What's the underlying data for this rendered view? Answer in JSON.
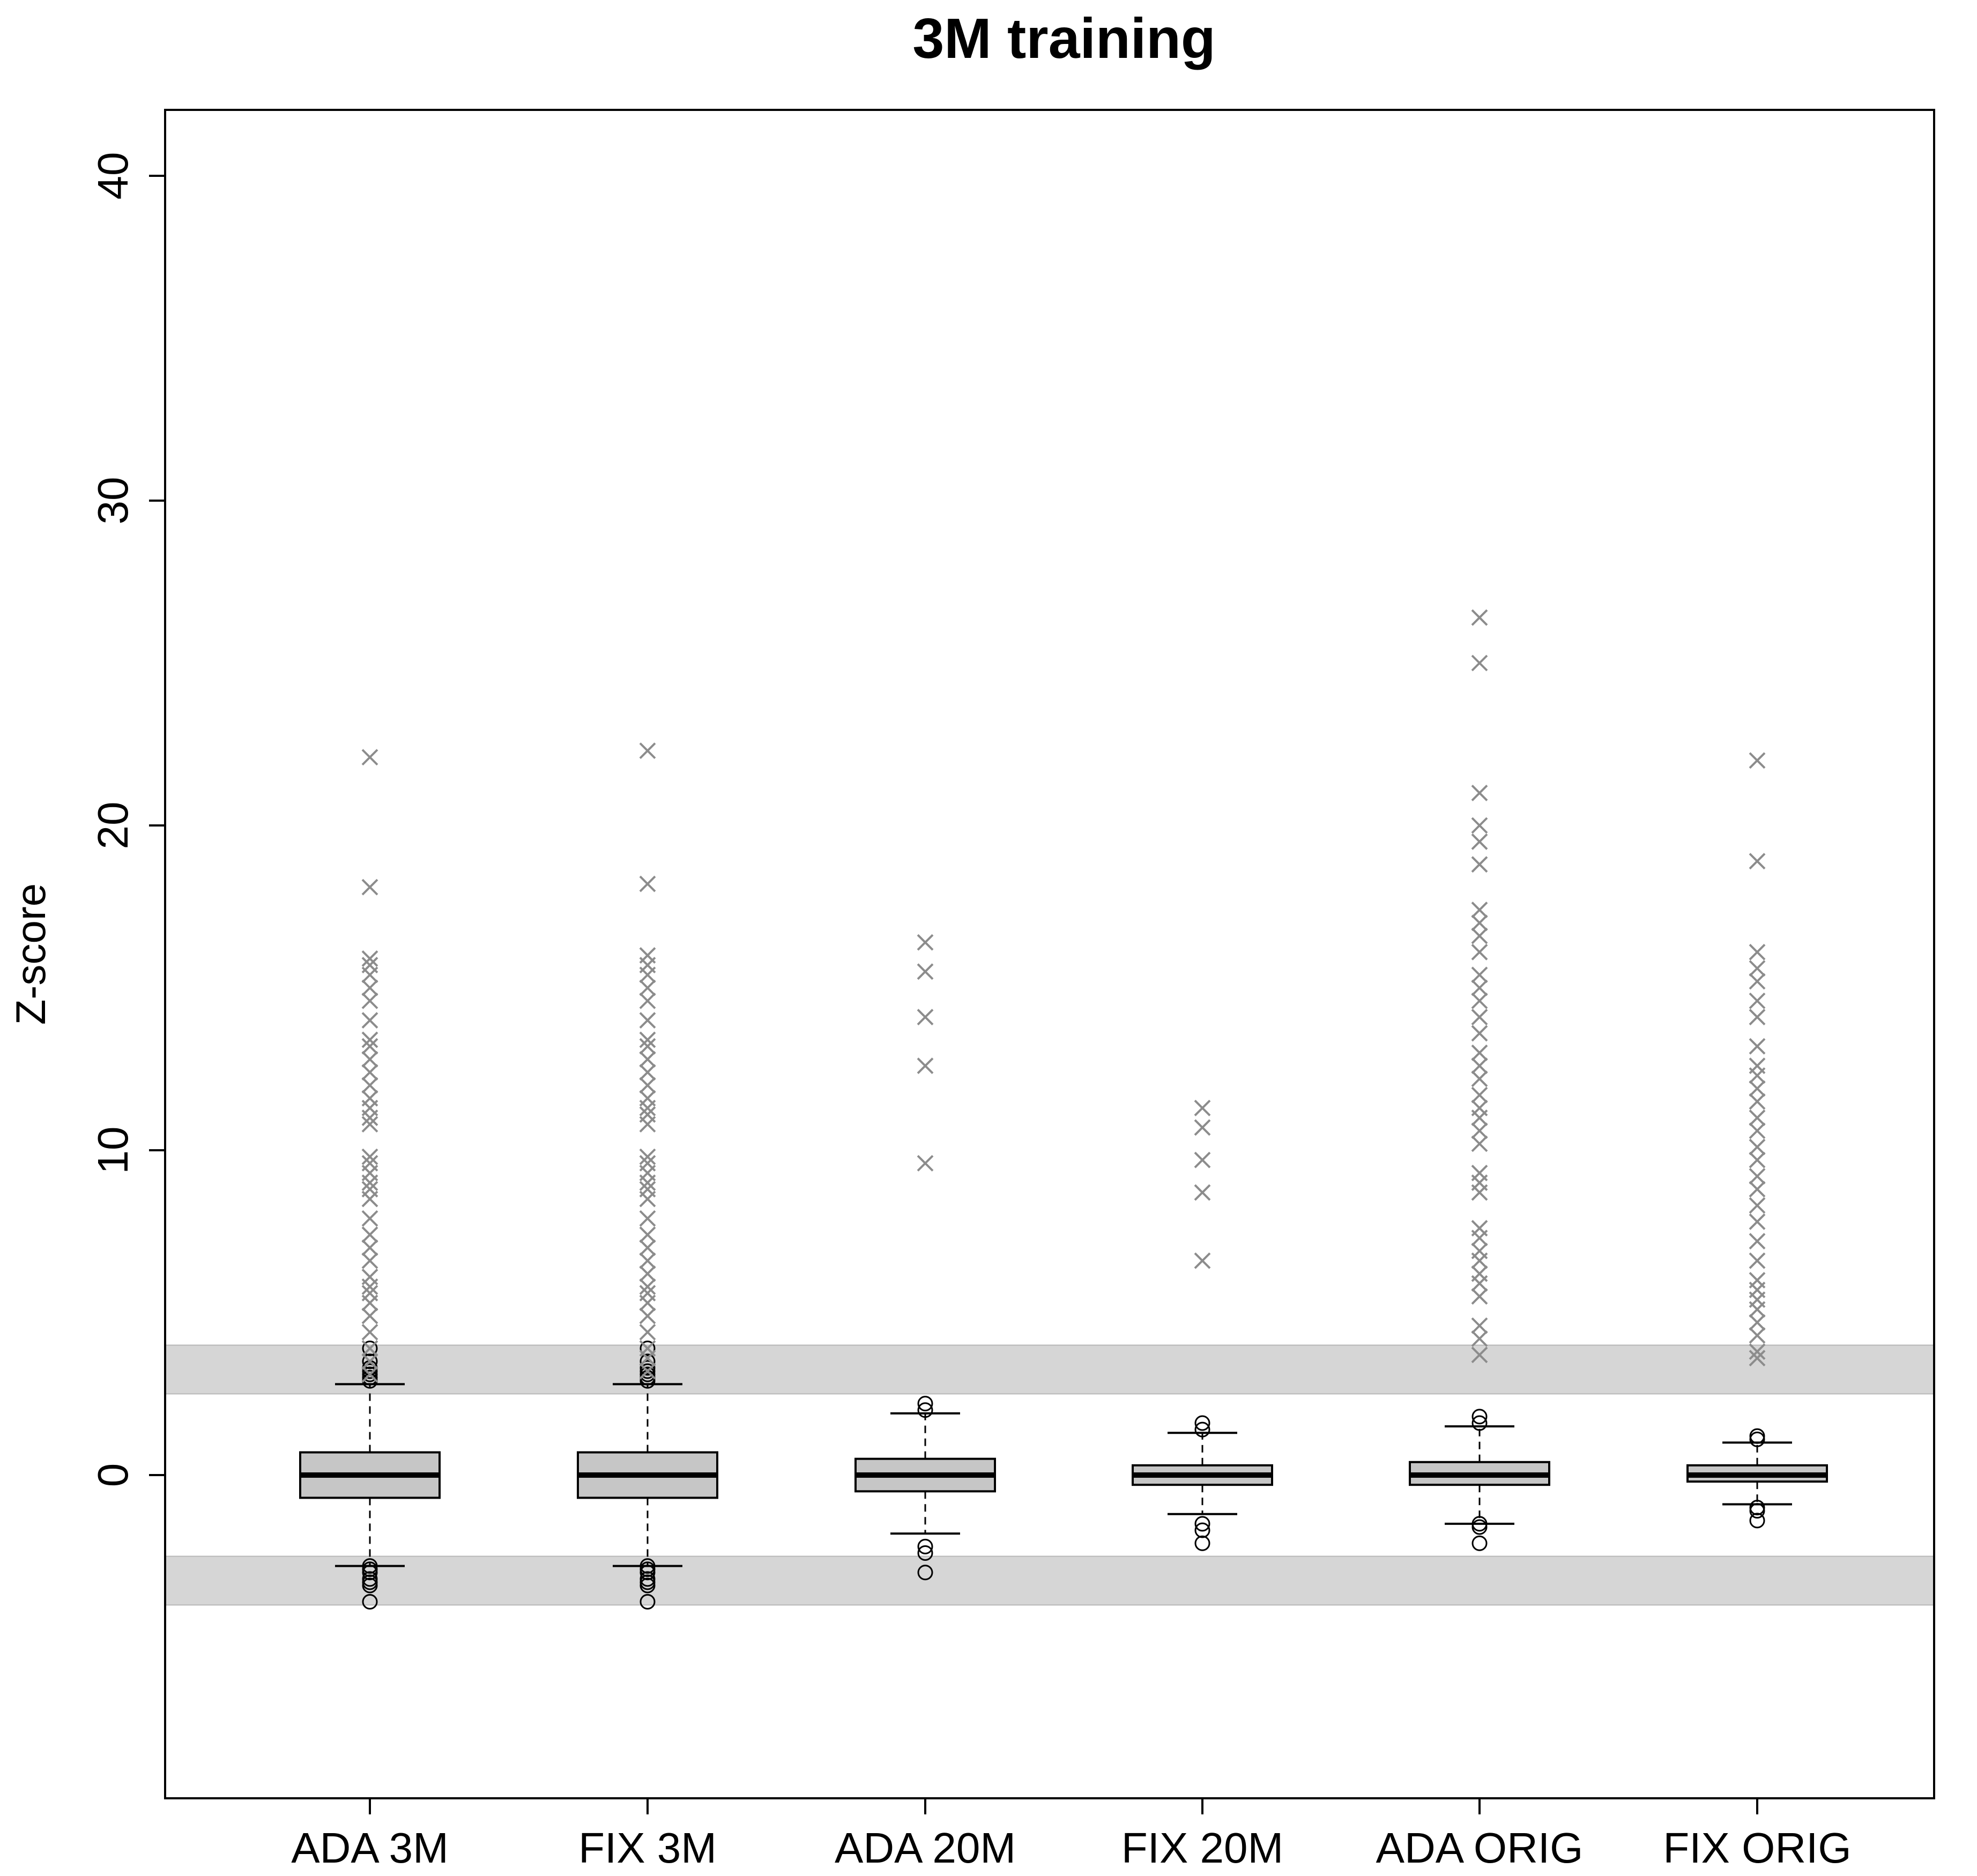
{
  "chart_data": {
    "type": "boxplot",
    "title": "3M training",
    "xlabel": "",
    "ylabel": "Z-score",
    "ylim": [
      -10,
      42
    ],
    "y_ticks": [
      "0",
      "10",
      "20",
      "30",
      "40"
    ],
    "bands": [
      {
        "from": 2.5,
        "to": 4.0,
        "color": "#d6d6d6"
      },
      {
        "from": -4.0,
        "to": -2.5,
        "color": "#d6d6d6"
      }
    ],
    "categories": [
      "ADA 3M",
      "FIX 3M",
      "ADA 20M",
      "FIX 20M",
      "ADA ORIG",
      "FIX ORIG"
    ],
    "boxes": [
      {
        "q1": -0.7,
        "median": 0.0,
        "q3": 0.7,
        "whisker_low": -2.8,
        "whisker_high": 2.8,
        "outliers": [
          2.9,
          3.0,
          3.1,
          3.2,
          3.3,
          3.5,
          3.9,
          -2.8,
          -2.9,
          -3.0,
          -3.2,
          -3.3,
          -3.4,
          -3.9
        ]
      },
      {
        "q1": -0.7,
        "median": 0.0,
        "q3": 0.7,
        "whisker_low": -2.8,
        "whisker_high": 2.8,
        "outliers": [
          2.9,
          3.0,
          3.1,
          3.2,
          3.3,
          3.5,
          3.9,
          -2.8,
          -2.9,
          -3.0,
          -3.2,
          -3.3,
          -3.4,
          -3.9
        ]
      },
      {
        "q1": -0.5,
        "median": 0.0,
        "q3": 0.5,
        "whisker_low": -1.8,
        "whisker_high": 1.9,
        "outliers": [
          2.0,
          2.2,
          -2.2,
          -2.4,
          -3.0
        ]
      },
      {
        "q1": -0.3,
        "median": 0.0,
        "q3": 0.3,
        "whisker_low": -1.2,
        "whisker_high": 1.3,
        "outliers": [
          1.4,
          1.6,
          -1.5,
          -1.7,
          -2.1
        ]
      },
      {
        "q1": -0.3,
        "median": 0.0,
        "q3": 0.4,
        "whisker_low": -1.5,
        "whisker_high": 1.5,
        "outliers": [
          1.6,
          1.8,
          -1.5,
          -1.6,
          -2.1
        ]
      },
      {
        "q1": -0.2,
        "median": 0.0,
        "q3": 0.3,
        "whisker_low": -0.9,
        "whisker_high": 1.0,
        "outliers": [
          1.1,
          1.2,
          -1.0,
          -1.1,
          -1.4
        ]
      }
    ],
    "extreme_points": [
      [
        3.1,
        3.5,
        3.9,
        4.4,
        4.9,
        5.3,
        5.6,
        5.8,
        6.1,
        6.6,
        7.0,
        7.4,
        7.9,
        8.5,
        8.8,
        9.0,
        9.3,
        9.6,
        9.8,
        10.8,
        11.0,
        11.3,
        11.6,
        12.0,
        12.4,
        12.8,
        13.2,
        13.4,
        14.0,
        14.6,
        15.0,
        15.4,
        15.7,
        15.9,
        18.1,
        22.1
      ],
      [
        3.2,
        3.6,
        3.9,
        4.4,
        4.9,
        5.3,
        5.6,
        5.8,
        6.2,
        6.6,
        7.0,
        7.4,
        7.9,
        8.5,
        8.8,
        9.0,
        9.3,
        9.6,
        9.8,
        10.8,
        11.1,
        11.3,
        11.6,
        12.0,
        12.4,
        12.8,
        13.2,
        13.4,
        14.0,
        14.6,
        15.0,
        15.4,
        15.7,
        16.0,
        18.2,
        22.3
      ],
      [
        9.6,
        12.6,
        14.1,
        15.5,
        16.4
      ],
      [
        6.6,
        8.7,
        9.7,
        10.7,
        11.3
      ],
      [
        3.7,
        4.2,
        4.6,
        5.5,
        5.9,
        6.2,
        6.6,
        6.9,
        7.3,
        7.6,
        8.7,
        9.0,
        9.3,
        10.2,
        10.6,
        11.0,
        11.3,
        11.7,
        12.2,
        12.6,
        13.0,
        13.6,
        14.1,
        14.6,
        15.0,
        15.4,
        16.1,
        16.6,
        17.0,
        17.4,
        18.8,
        19.5,
        20.0,
        21.0,
        25.0,
        26.4
      ],
      [
        3.6,
        3.8,
        4.3,
        4.7,
        5.1,
        5.4,
        5.7,
        6.0,
        6.6,
        7.2,
        7.8,
        8.3,
        8.8,
        9.2,
        9.7,
        10.1,
        10.6,
        11.0,
        11.5,
        11.9,
        12.3,
        12.6,
        13.2,
        14.1,
        14.6,
        15.2,
        15.6,
        16.1,
        18.9,
        22.0
      ]
    ]
  },
  "colors": {
    "box_fill": "#c6c6c6",
    "band": "#d6d6d6",
    "extreme_marker": "#8c8c8c",
    "outline": "#000000"
  }
}
